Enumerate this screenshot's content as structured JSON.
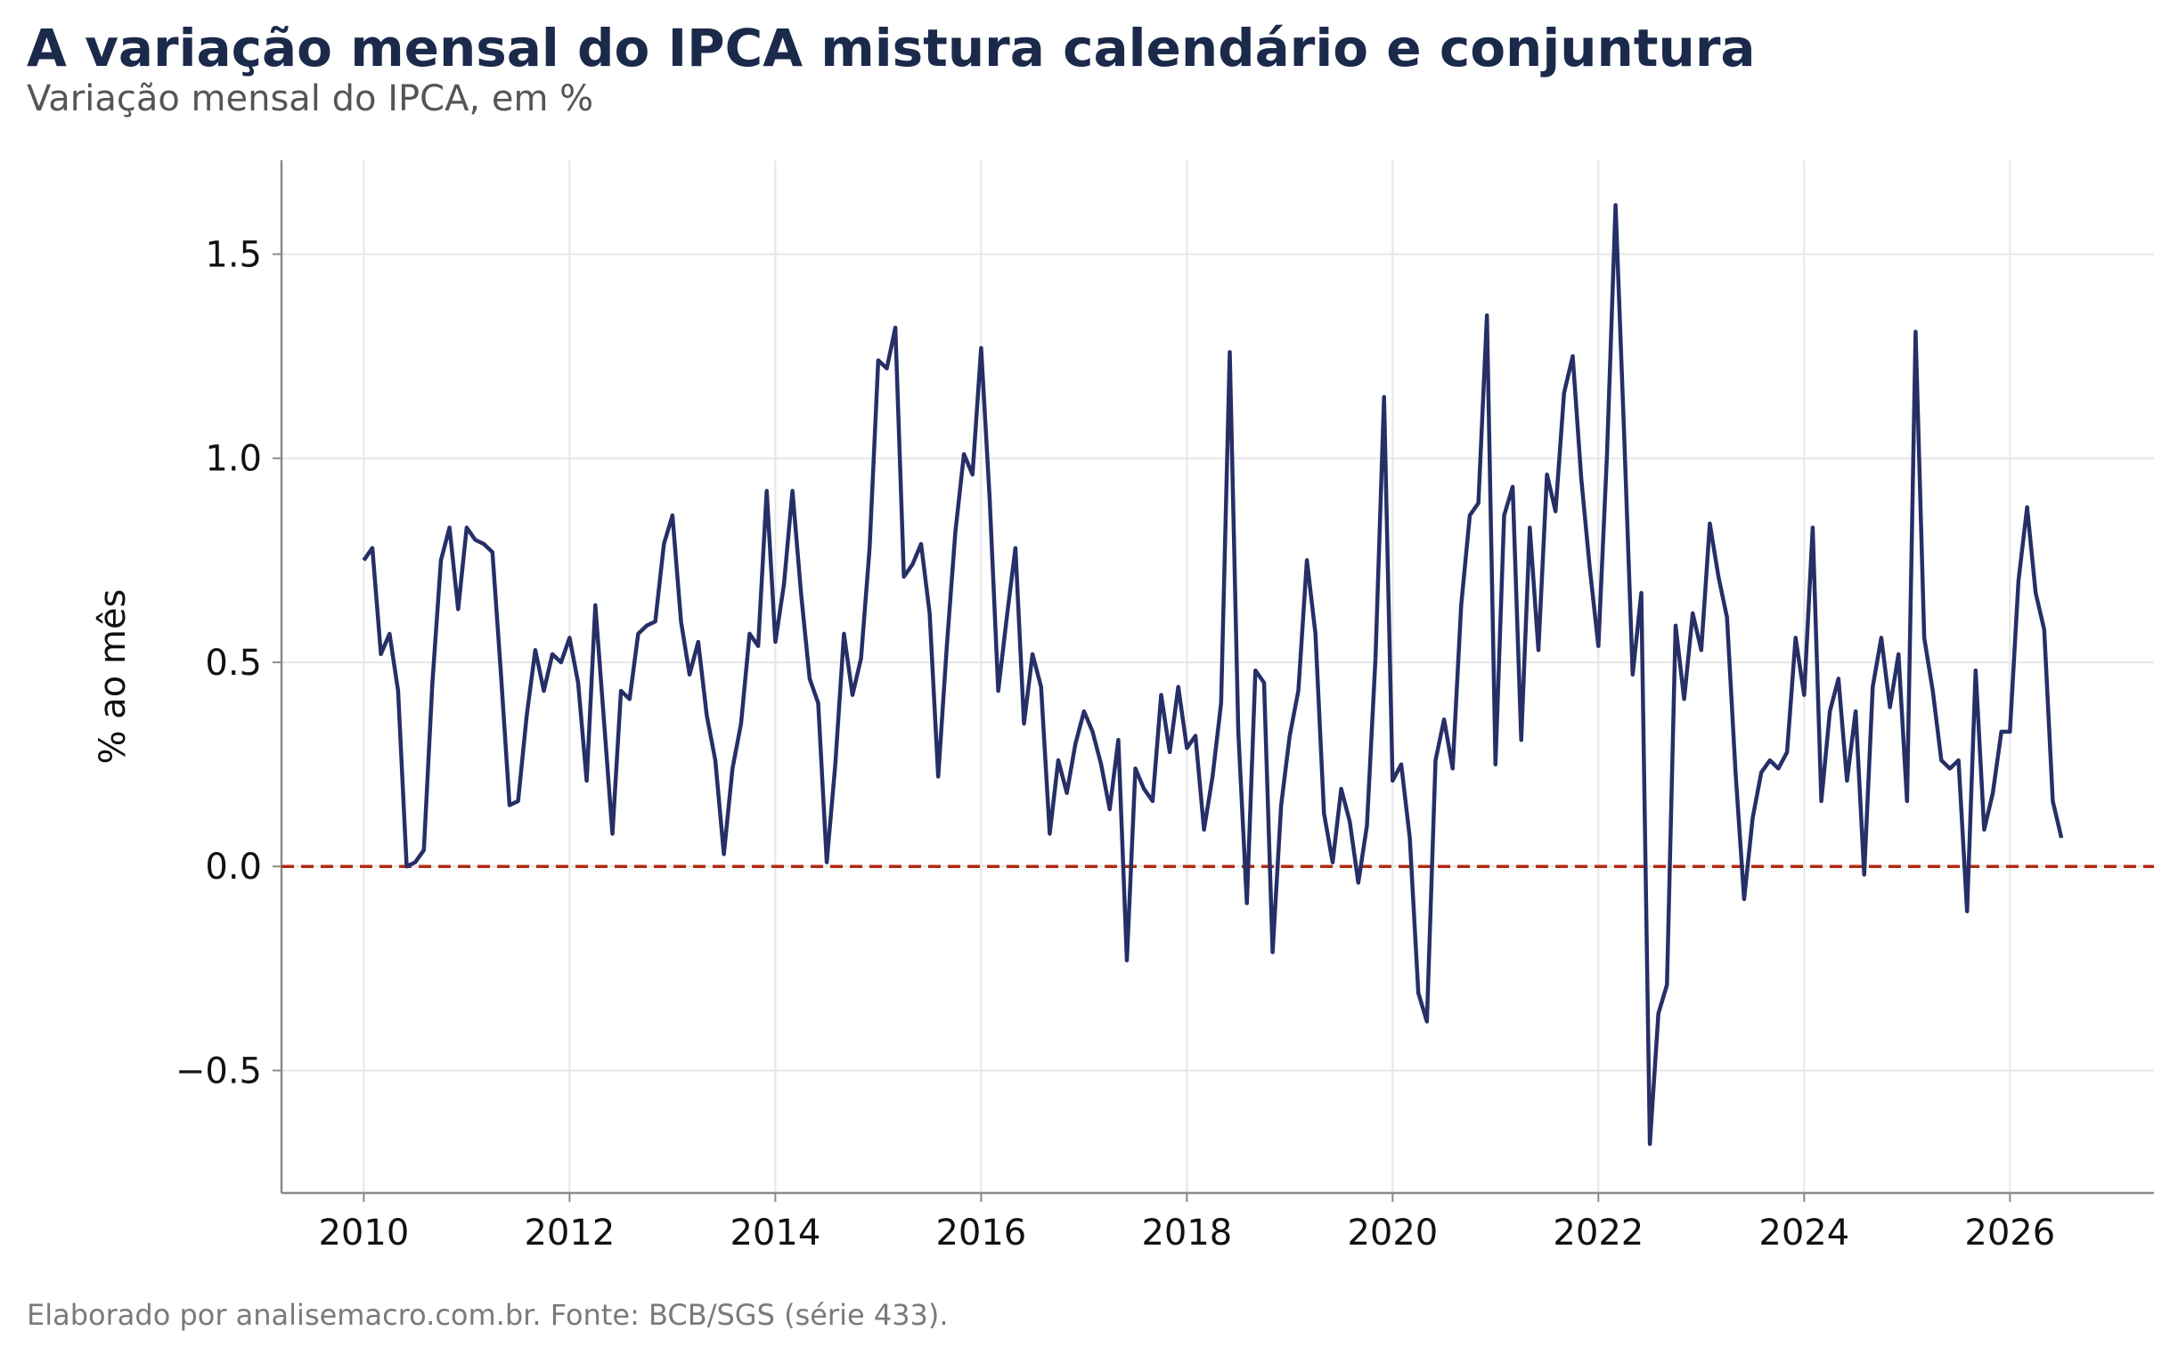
{
  "title": "A variação mensal do IPCA mistura calendário e conjuntura",
  "subtitle": "Variação mensal do IPCA, em %",
  "caption": "Elaborado por analisemacro.com.br. Fonte: BCB/SGS (série 433).",
  "colors": {
    "series": "#262f66",
    "zero_line": "#b22a12",
    "grid": "#e6e6e6",
    "axis": "#8a8a8a",
    "title": "#1b2a4a"
  },
  "chart_data": {
    "type": "line",
    "ylabel": "% ao mês",
    "xlabel": "",
    "x_ticks": [
      "2010",
      "2012",
      "2014",
      "2016",
      "2018",
      "2020",
      "2022",
      "2024",
      "2026"
    ],
    "y_ticks": [
      "−0.5",
      "0.0",
      "0.5",
      "1.0",
      "1.5"
    ],
    "xlim": [
      2009.2,
      2027.4
    ],
    "ylim": [
      -0.8,
      1.73
    ],
    "grid": true,
    "reference_line": {
      "y": 0,
      "style": "dashed"
    },
    "start": "2010-01",
    "frequency": "monthly",
    "values": [
      0.75,
      0.78,
      0.52,
      0.57,
      0.43,
      0.0,
      0.01,
      0.04,
      0.45,
      0.75,
      0.83,
      0.63,
      0.83,
      0.8,
      0.79,
      0.77,
      0.47,
      0.15,
      0.16,
      0.37,
      0.53,
      0.43,
      0.52,
      0.5,
      0.56,
      0.45,
      0.21,
      0.64,
      0.36,
      0.08,
      0.43,
      0.41,
      0.57,
      0.59,
      0.6,
      0.79,
      0.86,
      0.6,
      0.47,
      0.55,
      0.37,
      0.26,
      0.03,
      0.24,
      0.35,
      0.57,
      0.54,
      0.92,
      0.55,
      0.69,
      0.92,
      0.67,
      0.46,
      0.4,
      0.01,
      0.25,
      0.57,
      0.42,
      0.51,
      0.78,
      1.24,
      1.22,
      1.32,
      0.71,
      0.74,
      0.79,
      0.62,
      0.22,
      0.54,
      0.82,
      1.01,
      0.96,
      1.27,
      0.9,
      0.43,
      0.61,
      0.78,
      0.35,
      0.52,
      0.44,
      0.08,
      0.26,
      0.18,
      0.3,
      0.38,
      0.33,
      0.25,
      0.14,
      0.31,
      -0.23,
      0.24,
      0.19,
      0.16,
      0.42,
      0.28,
      0.44,
      0.29,
      0.32,
      0.09,
      0.22,
      0.4,
      1.26,
      0.33,
      -0.09,
      0.48,
      0.45,
      -0.21,
      0.15,
      0.32,
      0.43,
      0.75,
      0.57,
      0.13,
      0.01,
      0.19,
      0.11,
      -0.04,
      0.1,
      0.51,
      1.15,
      0.21,
      0.25,
      0.07,
      -0.31,
      -0.38,
      0.26,
      0.36,
      0.24,
      0.64,
      0.86,
      0.89,
      1.35,
      0.25,
      0.86,
      0.93,
      0.31,
      0.83,
      0.53,
      0.96,
      0.87,
      1.16,
      1.25,
      0.95,
      0.73,
      0.54,
      1.01,
      1.62,
      1.06,
      0.47,
      0.67,
      -0.68,
      -0.36,
      -0.29,
      0.59,
      0.41,
      0.62,
      0.53,
      0.84,
      0.71,
      0.61,
      0.23,
      -0.08,
      0.12,
      0.23,
      0.26,
      0.24,
      0.28,
      0.56,
      0.42,
      0.83,
      0.16,
      0.38,
      0.46,
      0.21,
      0.38,
      -0.02,
      0.44,
      0.56,
      0.39,
      0.52,
      0.16,
      1.31,
      0.56,
      0.43,
      0.26,
      0.24,
      0.26,
      -0.11,
      0.48,
      0.09,
      0.18,
      0.33,
      0.33,
      0.7,
      0.88,
      0.67,
      0.58,
      0.16,
      0.07
    ]
  }
}
